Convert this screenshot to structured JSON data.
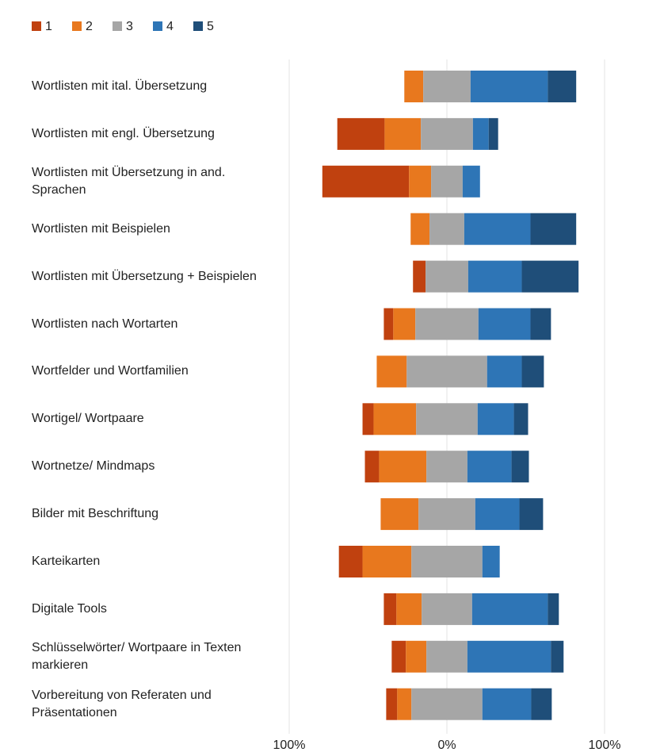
{
  "chart_data": {
    "type": "diverging_bar",
    "categories": [
      "Wortlisten mit ital. Übersetzung",
      "Wortlisten mit engl. Übersetzung",
      "Wortlisten mit Übersetzung in and. Sprachen",
      "Wortlisten mit Beispielen",
      "Wortlisten mit Übersetzung + Beispielen",
      "Wortlisten nach Wortarten",
      "Wortfelder und Wortfamilien",
      "Wortigel/ Wortpaare",
      "Wortnetze/ Mindmaps",
      "Bilder mit Beschriftung",
      "Karteikarten",
      "Digitale Tools",
      "Schlüsselwörter/ Wortpaare in Texten markieren",
      "Vorbereitung von Referaten und Präsentationen"
    ],
    "series": [
      {
        "name": "1",
        "color": "#c0410f",
        "values": [
          0,
          30,
          55,
          0,
          8,
          6,
          0,
          7,
          9,
          0,
          15,
          8,
          9,
          7
        ]
      },
      {
        "name": "2",
        "color": "#e8781e",
        "values": [
          12,
          23,
          14,
          12,
          0,
          14,
          19,
          27,
          30,
          24,
          31,
          16,
          13,
          9
        ]
      },
      {
        "name": "3",
        "color": "#a6a6a6",
        "values": [
          30,
          33,
          20,
          22,
          27,
          40,
          51,
          39,
          26,
          36,
          45,
          32,
          26,
          45
        ]
      },
      {
        "name": "4",
        "color": "#2e75b6",
        "values": [
          49,
          10,
          11,
          42,
          34,
          33,
          22,
          23,
          28,
          28,
          11,
          48,
          53,
          31
        ]
      },
      {
        "name": "5",
        "color": "#1f4e79",
        "values": [
          18,
          6,
          0,
          29,
          36,
          13,
          14,
          9,
          11,
          15,
          0,
          7,
          8,
          13
        ]
      }
    ],
    "xlim": [
      -100,
      100
    ],
    "xticks": [
      {
        "value": -100,
        "label": "100%"
      },
      {
        "value": 0,
        "label": "0%"
      },
      {
        "value": 100,
        "label": "100%"
      }
    ],
    "grid": true,
    "legend": "top-left"
  }
}
